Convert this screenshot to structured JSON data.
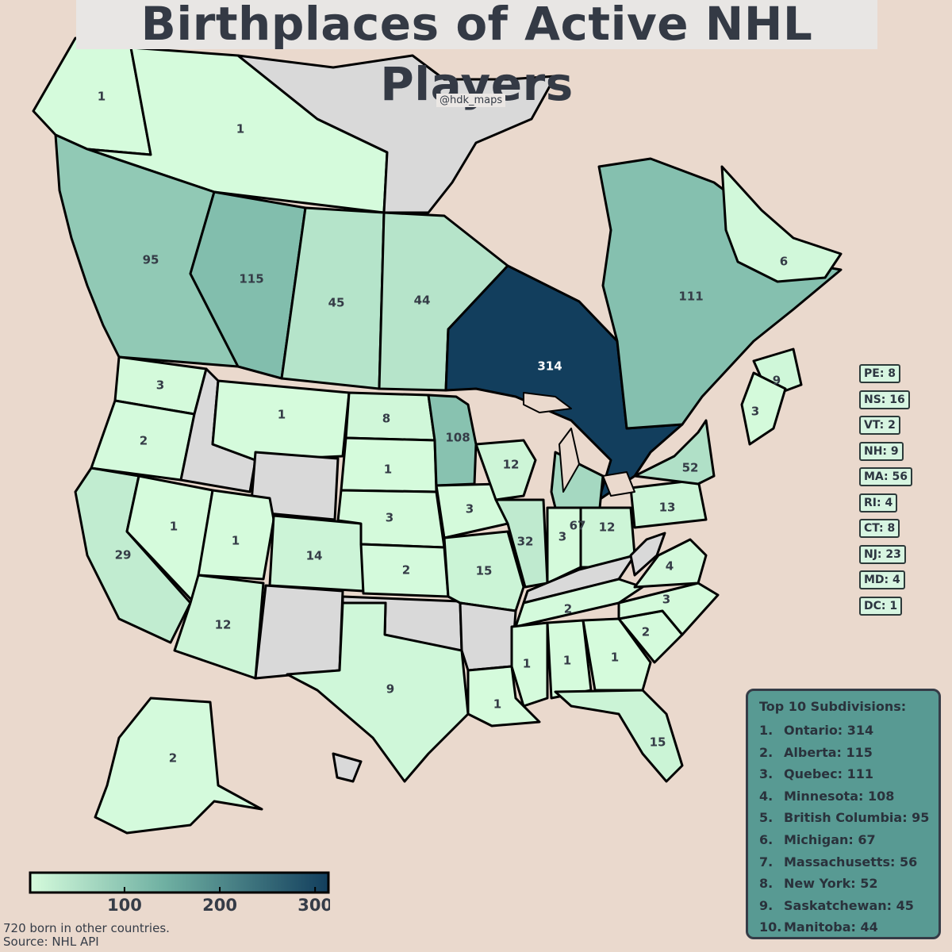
{
  "title": "Birthplaces of Active NHL Players",
  "watermark": "@hdk_maps",
  "colors": {
    "background": "#ead9cd",
    "no_data": "#d9d9d9",
    "scale_low": "#d5fbdc",
    "scale_mid": "#6fb0a2",
    "scale_high": "#123e5d"
  },
  "map_data": {
    "type": "choropleth",
    "value_name": "active NHL players born",
    "regions": [
      {
        "id": "yukon",
        "value": "1"
      },
      {
        "id": "northwest-territories",
        "value": "1"
      },
      {
        "id": "nunavut",
        "value": ""
      },
      {
        "id": "british-columbia",
        "value": "95"
      },
      {
        "id": "alberta",
        "value": "115"
      },
      {
        "id": "saskatchewan",
        "value": "45"
      },
      {
        "id": "manitoba",
        "value": "44"
      },
      {
        "id": "ontario",
        "value": "314"
      },
      {
        "id": "quebec",
        "value": "111"
      },
      {
        "id": "newfoundland-labrador",
        "value": "6"
      },
      {
        "id": "new-brunswick",
        "value": "9"
      },
      {
        "id": "washington",
        "value": "3"
      },
      {
        "id": "oregon",
        "value": "2"
      },
      {
        "id": "california",
        "value": "29"
      },
      {
        "id": "nevada",
        "value": "1"
      },
      {
        "id": "idaho",
        "value": ""
      },
      {
        "id": "montana",
        "value": "1"
      },
      {
        "id": "wyoming",
        "value": ""
      },
      {
        "id": "utah",
        "value": "1"
      },
      {
        "id": "arizona",
        "value": "12"
      },
      {
        "id": "colorado",
        "value": "14"
      },
      {
        "id": "new-mexico",
        "value": ""
      },
      {
        "id": "north-dakota",
        "value": "8"
      },
      {
        "id": "south-dakota",
        "value": "1"
      },
      {
        "id": "nebraska",
        "value": "3"
      },
      {
        "id": "kansas",
        "value": "2"
      },
      {
        "id": "oklahoma",
        "value": ""
      },
      {
        "id": "texas",
        "value": "9"
      },
      {
        "id": "minnesota",
        "value": "108"
      },
      {
        "id": "iowa",
        "value": "3"
      },
      {
        "id": "missouri",
        "value": "15"
      },
      {
        "id": "arkansas",
        "value": ""
      },
      {
        "id": "louisiana",
        "value": "1"
      },
      {
        "id": "wisconsin",
        "value": "12"
      },
      {
        "id": "illinois",
        "value": "32"
      },
      {
        "id": "michigan",
        "value": "67"
      },
      {
        "id": "indiana",
        "value": "3"
      },
      {
        "id": "ohio",
        "value": "12"
      },
      {
        "id": "kentucky",
        "value": ""
      },
      {
        "id": "tennessee",
        "value": "2"
      },
      {
        "id": "mississippi",
        "value": "1"
      },
      {
        "id": "alabama",
        "value": "1"
      },
      {
        "id": "georgia",
        "value": "1"
      },
      {
        "id": "florida",
        "value": "15"
      },
      {
        "id": "south-carolina",
        "value": "2"
      },
      {
        "id": "north-carolina",
        "value": "3"
      },
      {
        "id": "virginia",
        "value": "4"
      },
      {
        "id": "west-virginia",
        "value": ""
      },
      {
        "id": "pennsylvania",
        "value": "13"
      },
      {
        "id": "new-york",
        "value": "52"
      },
      {
        "id": "maine",
        "value": "3"
      },
      {
        "id": "alaska",
        "value": "2"
      },
      {
        "id": "hawaii",
        "value": ""
      }
    ]
  },
  "small_states": [
    {
      "id": "pe",
      "text": "PE: 8"
    },
    {
      "id": "ns",
      "text": "NS: 16"
    },
    {
      "id": "vt",
      "text": "VT: 2"
    },
    {
      "id": "nh",
      "text": "NH: 9"
    },
    {
      "id": "ma",
      "text": "MA: 56"
    },
    {
      "id": "ri",
      "text": "RI: 4"
    },
    {
      "id": "ct",
      "text": "CT: 8"
    },
    {
      "id": "nj",
      "text": "NJ: 23"
    },
    {
      "id": "md",
      "text": "MD: 4"
    },
    {
      "id": "dc",
      "text": "DC: 1"
    }
  ],
  "top10": {
    "heading": "Top 10 Subdivisions:",
    "items": [
      {
        "rank": "1.",
        "text": "Ontario: 314"
      },
      {
        "rank": "2.",
        "text": "Alberta: 115"
      },
      {
        "rank": "3.",
        "text": "Quebec: 111"
      },
      {
        "rank": "4.",
        "text": "Minnesota: 108"
      },
      {
        "rank": "5.",
        "text": "British Columbia: 95"
      },
      {
        "rank": "6.",
        "text": "Michigan: 67"
      },
      {
        "rank": "7.",
        "text": "Massachusetts: 56"
      },
      {
        "rank": "8.",
        "text": "New York: 52"
      },
      {
        "rank": "9.",
        "text": "Saskatchewan: 45"
      },
      {
        "rank": "10.",
        "text": "Manitoba: 44"
      }
    ]
  },
  "legend": {
    "ticks": [
      "100",
      "200",
      "300"
    ],
    "range": [
      1,
      314
    ]
  },
  "footer": {
    "note": "720 born in other countries.",
    "source": "Source: NHL API"
  }
}
